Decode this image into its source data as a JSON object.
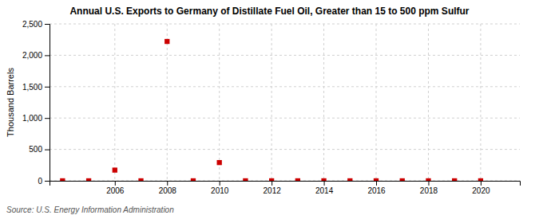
{
  "chart_data": {
    "type": "scatter",
    "title": "Annual U.S. Exports to Germany of Distillate Fuel Oil, Greater than 15 to 500 ppm Sulfur",
    "ylabel": "Thousand Barrels",
    "source": "Source: U.S. Energy Information Administration",
    "x": [
      2004,
      2005,
      2006,
      2007,
      2008,
      2009,
      2010,
      2011,
      2012,
      2013,
      2014,
      2015,
      2016,
      2017,
      2018,
      2019,
      2020
    ],
    "values": [
      0,
      0,
      170,
      0,
      2220,
      0,
      290,
      0,
      0,
      0,
      0,
      0,
      0,
      0,
      0,
      0,
      0
    ],
    "color": "#cc0000",
    "marker": "square",
    "xlim": [
      2003.5,
      2021.5
    ],
    "xticks": [
      2006,
      2008,
      2010,
      2012,
      2014,
      2016,
      2018,
      2020
    ],
    "ylim": [
      0,
      2500
    ],
    "yticks": [
      0,
      500,
      {
        "value": 1000,
        "label": "1,000"
      },
      {
        "value": 1500,
        "label": "1,500"
      },
      {
        "value": 2000,
        "label": "2,000"
      },
      {
        "value": 2500,
        "label": "2,500"
      }
    ],
    "grid": true
  }
}
